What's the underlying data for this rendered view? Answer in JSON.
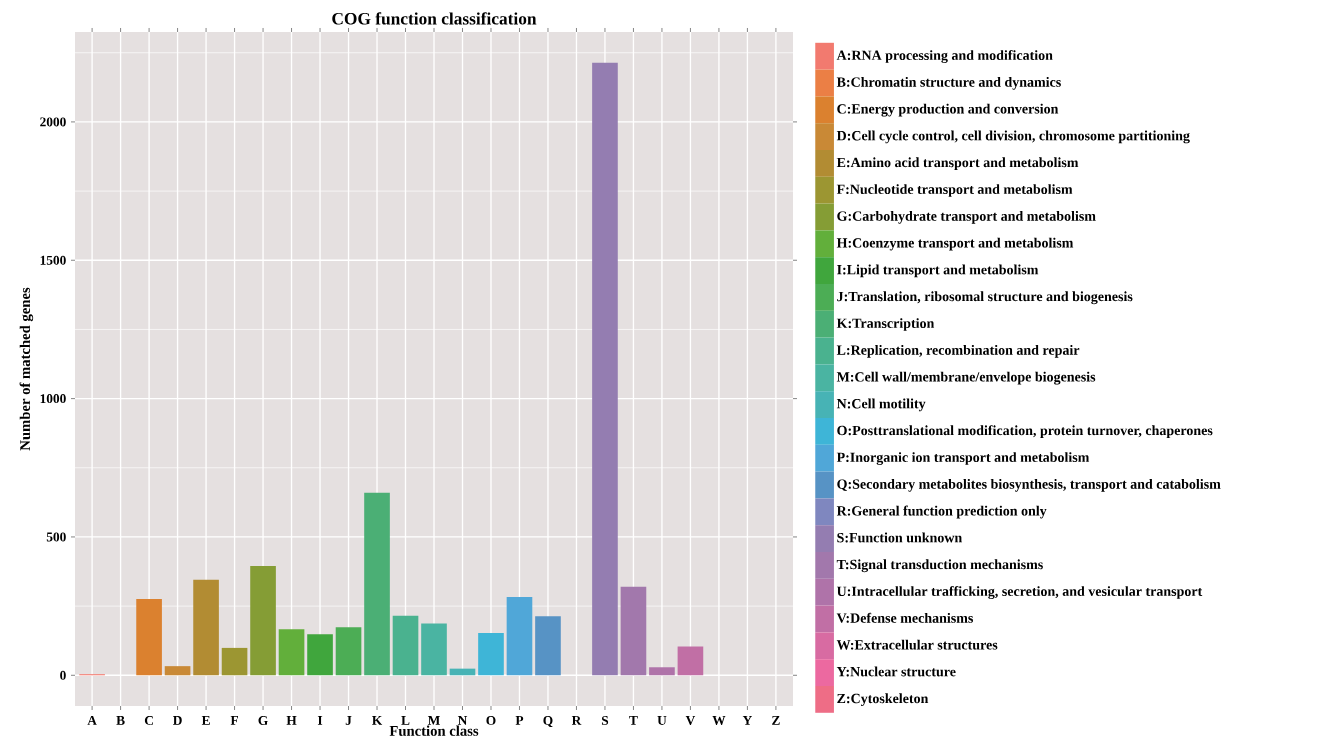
{
  "chart_data": {
    "type": "bar",
    "title": "COG function classification",
    "xlabel": "Function class",
    "ylabel": "Number of matched genes",
    "categories": [
      "A",
      "B",
      "C",
      "D",
      "E",
      "F",
      "G",
      "H",
      "I",
      "J",
      "K",
      "L",
      "M",
      "N",
      "O",
      "P",
      "Q",
      "R",
      "S",
      "T",
      "U",
      "V",
      "W",
      "Y",
      "Z"
    ],
    "series": [
      {
        "name": "A:RNA processing and modification",
        "color": "#f27a6f",
        "values": [
          4,
          null,
          null,
          null,
          null,
          null,
          null,
          null,
          null,
          null,
          null,
          null,
          null,
          null,
          null,
          null,
          null,
          null,
          null,
          null,
          null,
          null,
          null,
          null,
          null
        ]
      },
      {
        "name": "B:Chromatin structure and dynamics",
        "color": "#eb7f45",
        "values": [
          null,
          0,
          null,
          null,
          null,
          null,
          null,
          null,
          null,
          null,
          null,
          null,
          null,
          null,
          null,
          null,
          null,
          null,
          null,
          null,
          null,
          null,
          null,
          null,
          null
        ]
      },
      {
        "name": "C:Energy production and conversion",
        "color": "#db812f",
        "values": [
          null,
          null,
          276,
          null,
          null,
          null,
          null,
          null,
          null,
          null,
          null,
          null,
          null,
          null,
          null,
          null,
          null,
          null,
          null,
          null,
          null,
          null,
          null,
          null,
          null
        ]
      },
      {
        "name": "D:Cell cycle control, cell division, chromosome partitioning",
        "color": "#c98936",
        "values": [
          null,
          null,
          null,
          33,
          null,
          null,
          null,
          null,
          null,
          null,
          null,
          null,
          null,
          null,
          null,
          null,
          null,
          null,
          null,
          null,
          null,
          null,
          null,
          null,
          null
        ]
      },
      {
        "name": "E:Amino acid transport and metabolism",
        "color": "#b28c33",
        "values": [
          null,
          null,
          null,
          null,
          345,
          null,
          null,
          null,
          null,
          null,
          null,
          null,
          null,
          null,
          null,
          null,
          null,
          null,
          null,
          null,
          null,
          null,
          null,
          null,
          null
        ]
      },
      {
        "name": "F:Nucleotide transport and metabolism",
        "color": "#9c9632",
        "values": [
          null,
          null,
          null,
          null,
          null,
          99,
          null,
          null,
          null,
          null,
          null,
          null,
          null,
          null,
          null,
          null,
          null,
          null,
          null,
          null,
          null,
          null,
          null,
          null,
          null
        ]
      },
      {
        "name": "G:Carbohydrate transport and metabolism",
        "color": "#859d35",
        "values": [
          null,
          null,
          null,
          null,
          null,
          null,
          395,
          null,
          null,
          null,
          null,
          null,
          null,
          null,
          null,
          null,
          null,
          null,
          null,
          null,
          null,
          null,
          null,
          null,
          null
        ]
      },
      {
        "name": "H:Coenzyme transport and metabolism",
        "color": "#62af3b",
        "values": [
          null,
          null,
          null,
          null,
          null,
          null,
          null,
          166,
          null,
          null,
          null,
          null,
          null,
          null,
          null,
          null,
          null,
          null,
          null,
          null,
          null,
          null,
          null,
          null,
          null
        ]
      },
      {
        "name": "I:Lipid transport and metabolism",
        "color": "#40a63d",
        "values": [
          null,
          null,
          null,
          null,
          null,
          null,
          null,
          null,
          148,
          null,
          null,
          null,
          null,
          null,
          null,
          null,
          null,
          null,
          null,
          null,
          null,
          null,
          null,
          null,
          null
        ]
      },
      {
        "name": "J:Translation, ribosomal structure and biogenesis",
        "color": "#4cad55",
        "values": [
          null,
          null,
          null,
          null,
          null,
          null,
          null,
          null,
          null,
          174,
          null,
          null,
          null,
          null,
          null,
          null,
          null,
          null,
          null,
          null,
          null,
          null,
          null,
          null,
          null
        ]
      },
      {
        "name": "K:Transcription",
        "color": "#4baf75",
        "values": [
          null,
          null,
          null,
          null,
          null,
          null,
          null,
          null,
          null,
          null,
          660,
          null,
          null,
          null,
          null,
          null,
          null,
          null,
          null,
          null,
          null,
          null,
          null,
          null,
          null
        ]
      },
      {
        "name": "L:Replication, recombination and repair",
        "color": "#4ab28f",
        "values": [
          null,
          null,
          null,
          null,
          null,
          null,
          null,
          null,
          null,
          null,
          null,
          215,
          null,
          null,
          null,
          null,
          null,
          null,
          null,
          null,
          null,
          null,
          null,
          null,
          null
        ]
      },
      {
        "name": "M:Cell wall/membrane/envelope biogenesis",
        "color": "#4ab4a2",
        "values": [
          null,
          null,
          null,
          null,
          null,
          null,
          null,
          null,
          null,
          null,
          null,
          null,
          187,
          null,
          null,
          null,
          null,
          null,
          null,
          null,
          null,
          null,
          null,
          null,
          null
        ]
      },
      {
        "name": "N:Cell motility",
        "color": "#47b3b5",
        "values": [
          null,
          null,
          null,
          null,
          null,
          null,
          null,
          null,
          null,
          null,
          null,
          null,
          null,
          24,
          null,
          null,
          null,
          null,
          null,
          null,
          null,
          null,
          null,
          null,
          null
        ]
      },
      {
        "name": "O:Posttranslational modification, protein turnover, chaperones",
        "color": "#3eb5d7",
        "values": [
          null,
          null,
          null,
          null,
          null,
          null,
          null,
          null,
          null,
          null,
          null,
          null,
          null,
          null,
          153,
          null,
          null,
          null,
          null,
          null,
          null,
          null,
          null,
          null,
          null
        ]
      },
      {
        "name": "P:Inorganic ion transport and metabolism",
        "color": "#50a7d8",
        "values": [
          null,
          null,
          null,
          null,
          null,
          null,
          null,
          null,
          null,
          null,
          null,
          null,
          null,
          null,
          null,
          283,
          null,
          null,
          null,
          null,
          null,
          null,
          null,
          null,
          null
        ]
      },
      {
        "name": "Q:Secondary metabolites biosynthesis, transport and catabolism",
        "color": "#5793c5",
        "values": [
          null,
          null,
          null,
          null,
          null,
          null,
          null,
          null,
          null,
          null,
          null,
          null,
          null,
          null,
          null,
          null,
          213,
          null,
          null,
          null,
          null,
          null,
          null,
          null,
          null
        ]
      },
      {
        "name": "R:General function prediction only",
        "color": "#7f87bf",
        "values": [
          null,
          null,
          null,
          null,
          null,
          null,
          null,
          null,
          null,
          null,
          null,
          null,
          null,
          null,
          null,
          null,
          null,
          0,
          null,
          null,
          null,
          null,
          null,
          null,
          null
        ]
      },
      {
        "name": "S:Function unknown",
        "color": "#947db1",
        "values": [
          null,
          null,
          null,
          null,
          null,
          null,
          null,
          null,
          null,
          null,
          null,
          null,
          null,
          null,
          null,
          null,
          null,
          null,
          2214,
          null,
          null,
          null,
          null,
          null,
          null
        ]
      },
      {
        "name": "T:Signal transduction mechanisms",
        "color": "#a278ac",
        "values": [
          null,
          null,
          null,
          null,
          null,
          null,
          null,
          null,
          null,
          null,
          null,
          null,
          null,
          null,
          null,
          null,
          null,
          null,
          null,
          320,
          null,
          null,
          null,
          null,
          null
        ]
      },
      {
        "name": "U:Intracellular trafficking, secretion, and vesicular transport",
        "color": "#af73a9",
        "values": [
          null,
          null,
          null,
          null,
          null,
          null,
          null,
          null,
          null,
          null,
          null,
          null,
          null,
          null,
          null,
          null,
          null,
          null,
          null,
          null,
          29,
          null,
          null,
          null,
          null
        ]
      },
      {
        "name": "V:Defense mechanisms",
        "color": "#c16fa5",
        "values": [
          null,
          null,
          null,
          null,
          null,
          null,
          null,
          null,
          null,
          null,
          null,
          null,
          null,
          null,
          null,
          null,
          null,
          null,
          null,
          null,
          null,
          104,
          null,
          null,
          null
        ]
      },
      {
        "name": "W:Extracellular structures",
        "color": "#d86ba2",
        "values": [
          null,
          null,
          null,
          null,
          null,
          null,
          null,
          null,
          null,
          null,
          null,
          null,
          null,
          null,
          null,
          null,
          null,
          null,
          null,
          null,
          null,
          null,
          0,
          null,
          null
        ]
      },
      {
        "name": "Y:Nuclear structure",
        "color": "#ec69a0",
        "values": [
          null,
          null,
          null,
          null,
          null,
          null,
          null,
          null,
          null,
          null,
          null,
          null,
          null,
          null,
          null,
          null,
          null,
          null,
          null,
          null,
          null,
          null,
          null,
          0,
          null
        ]
      },
      {
        "name": "Z:Cytoskeleton",
        "color": "#ee6d86",
        "values": [
          null,
          null,
          null,
          null,
          null,
          null,
          null,
          null,
          null,
          null,
          null,
          null,
          null,
          null,
          null,
          null,
          null,
          null,
          null,
          null,
          null,
          null,
          null,
          null,
          0
        ]
      }
    ],
    "ylim": [
      -111,
      2325
    ],
    "yticks": [
      0,
      500,
      1000,
      1500,
      2000
    ],
    "grid": true,
    "legend": "right"
  }
}
